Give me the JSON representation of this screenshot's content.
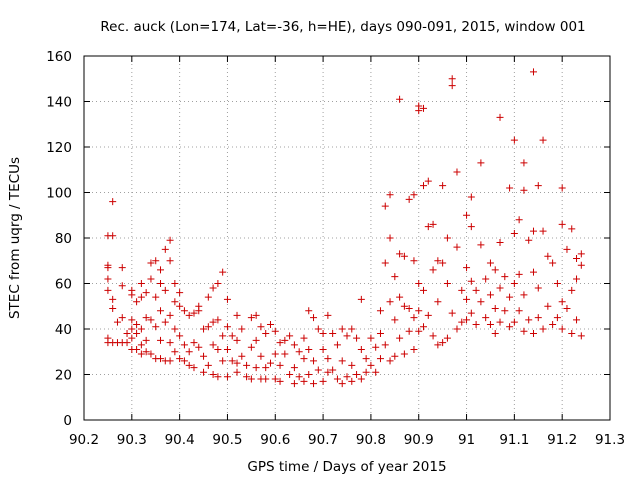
{
  "chart_data": {
    "type": "scatter",
    "title": "Rec. auck (Lon=174, Lat=-36, h=HE), days 090-091, 2015, window 001",
    "xlabel": "GPS time / Days of year 2015",
    "ylabel": "STEC from uqrg / TECUs",
    "xlim": [
      90.2,
      91.3
    ],
    "ylim": [
      0,
      160
    ],
    "xticks": [
      "90.2",
      "90.3",
      "90.4",
      "90.5",
      "90.6",
      "90.7",
      "90.8",
      "90.9",
      "91",
      "91.1",
      "91.2",
      "91.3"
    ],
    "xtick_values": [
      90.2,
      90.3,
      90.4,
      90.5,
      90.6,
      90.7,
      90.8,
      90.9,
      91.0,
      91.1,
      91.2,
      91.3
    ],
    "yticks": [
      "0",
      "20",
      "40",
      "60",
      "80",
      "100",
      "120",
      "140",
      "160"
    ],
    "ytick_values": [
      0,
      20,
      40,
      60,
      80,
      100,
      120,
      140,
      160
    ],
    "grid": true,
    "marker": "+",
    "color": "#cc0000",
    "points": [
      [
        90.25,
        68
      ],
      [
        90.25,
        67
      ],
      [
        90.25,
        62
      ],
      [
        90.25,
        57
      ],
      [
        90.25,
        34
      ],
      [
        90.25,
        36
      ],
      [
        90.25,
        81
      ],
      [
        90.26,
        81
      ],
      [
        90.26,
        96
      ],
      [
        90.26,
        53
      ],
      [
        90.26,
        49
      ],
      [
        90.26,
        34
      ],
      [
        90.27,
        34
      ],
      [
        90.27,
        43
      ],
      [
        90.28,
        67
      ],
      [
        90.28,
        59
      ],
      [
        90.28,
        45
      ],
      [
        90.28,
        34
      ],
      [
        90.29,
        38
      ],
      [
        90.29,
        34
      ],
      [
        90.3,
        57
      ],
      [
        90.3,
        55
      ],
      [
        90.3,
        44
      ],
      [
        90.3,
        40
      ],
      [
        90.3,
        36
      ],
      [
        90.3,
        31
      ],
      [
        90.31,
        52
      ],
      [
        90.31,
        42
      ],
      [
        90.31,
        38
      ],
      [
        90.31,
        31
      ],
      [
        90.32,
        60
      ],
      [
        90.32,
        54
      ],
      [
        90.32,
        40
      ],
      [
        90.32,
        33
      ],
      [
        90.32,
        29
      ],
      [
        90.33,
        56
      ],
      [
        90.33,
        45
      ],
      [
        90.33,
        35
      ],
      [
        90.33,
        30
      ],
      [
        90.34,
        69
      ],
      [
        90.34,
        62
      ],
      [
        90.34,
        44
      ],
      [
        90.34,
        29
      ],
      [
        90.35,
        70
      ],
      [
        90.35,
        54
      ],
      [
        90.35,
        41
      ],
      [
        90.35,
        27
      ],
      [
        90.36,
        66
      ],
      [
        90.36,
        60
      ],
      [
        90.36,
        48
      ],
      [
        90.36,
        35
      ],
      [
        90.36,
        27
      ],
      [
        90.37,
        75
      ],
      [
        90.37,
        57
      ],
      [
        90.37,
        43
      ],
      [
        90.37,
        26
      ],
      [
        90.38,
        79
      ],
      [
        90.38,
        70
      ],
      [
        90.38,
        46
      ],
      [
        90.38,
        34
      ],
      [
        90.38,
        26
      ],
      [
        90.39,
        60
      ],
      [
        90.39,
        52
      ],
      [
        90.39,
        40
      ],
      [
        90.39,
        30
      ],
      [
        90.4,
        56
      ],
      [
        90.4,
        50
      ],
      [
        90.4,
        37
      ],
      [
        90.4,
        27
      ],
      [
        90.41,
        48
      ],
      [
        90.41,
        33
      ],
      [
        90.41,
        26
      ],
      [
        90.42,
        46
      ],
      [
        90.42,
        30
      ],
      [
        90.42,
        24
      ],
      [
        90.43,
        47
      ],
      [
        90.43,
        34
      ],
      [
        90.43,
        23
      ],
      [
        90.44,
        50
      ],
      [
        90.44,
        48
      ],
      [
        90.44,
        32
      ],
      [
        90.45,
        40
      ],
      [
        90.45,
        28
      ],
      [
        90.45,
        21
      ],
      [
        90.46,
        54
      ],
      [
        90.46,
        41
      ],
      [
        90.46,
        24
      ],
      [
        90.47,
        58
      ],
      [
        90.47,
        43
      ],
      [
        90.47,
        33
      ],
      [
        90.47,
        20
      ],
      [
        90.48,
        60
      ],
      [
        90.48,
        44
      ],
      [
        90.48,
        31
      ],
      [
        90.48,
        19
      ],
      [
        90.49,
        65
      ],
      [
        90.49,
        37
      ],
      [
        90.49,
        26
      ],
      [
        90.5,
        53
      ],
      [
        90.5,
        41
      ],
      [
        90.5,
        31
      ],
      [
        90.5,
        19
      ],
      [
        90.51,
        37
      ],
      [
        90.51,
        26
      ],
      [
        90.52,
        46
      ],
      [
        90.52,
        35
      ],
      [
        90.52,
        25
      ],
      [
        90.52,
        21
      ],
      [
        90.53,
        40
      ],
      [
        90.53,
        28
      ],
      [
        90.54,
        24
      ],
      [
        90.54,
        19
      ],
      [
        90.55,
        45
      ],
      [
        90.55,
        32
      ],
      [
        90.55,
        18
      ],
      [
        90.56,
        46
      ],
      [
        90.56,
        35
      ],
      [
        90.56,
        23
      ],
      [
        90.57,
        41
      ],
      [
        90.57,
        28
      ],
      [
        90.57,
        18
      ],
      [
        90.58,
        38
      ],
      [
        90.58,
        23
      ],
      [
        90.58,
        18
      ],
      [
        90.59,
        42
      ],
      [
        90.59,
        25
      ],
      [
        90.6,
        39
      ],
      [
        90.6,
        29
      ],
      [
        90.6,
        18
      ],
      [
        90.61,
        34
      ],
      [
        90.61,
        24
      ],
      [
        90.61,
        17
      ],
      [
        90.62,
        35
      ],
      [
        90.62,
        29
      ],
      [
        90.63,
        37
      ],
      [
        90.63,
        20
      ],
      [
        90.64,
        33
      ],
      [
        90.64,
        23
      ],
      [
        90.64,
        16
      ],
      [
        90.65,
        30
      ],
      [
        90.65,
        19
      ],
      [
        90.66,
        36
      ],
      [
        90.66,
        27
      ],
      [
        90.66,
        17
      ],
      [
        90.67,
        48
      ],
      [
        90.67,
        31
      ],
      [
        90.67,
        20
      ],
      [
        90.68,
        45
      ],
      [
        90.68,
        26
      ],
      [
        90.68,
        16
      ],
      [
        90.69,
        40
      ],
      [
        90.69,
        22
      ],
      [
        90.7,
        38
      ],
      [
        90.7,
        31
      ],
      [
        90.7,
        17
      ],
      [
        90.71,
        46
      ],
      [
        90.71,
        27
      ],
      [
        90.71,
        21
      ],
      [
        90.72,
        38
      ],
      [
        90.72,
        22
      ],
      [
        90.73,
        33
      ],
      [
        90.73,
        18
      ],
      [
        90.74,
        40
      ],
      [
        90.74,
        26
      ],
      [
        90.74,
        16
      ],
      [
        90.75,
        37
      ],
      [
        90.75,
        19
      ],
      [
        90.76,
        40
      ],
      [
        90.76,
        24
      ],
      [
        90.76,
        17
      ],
      [
        90.77,
        36
      ],
      [
        90.77,
        20
      ],
      [
        90.78,
        53
      ],
      [
        90.78,
        31
      ],
      [
        90.78,
        18
      ],
      [
        90.79,
        27
      ],
      [
        90.79,
        21
      ],
      [
        90.8,
        36
      ],
      [
        90.8,
        24
      ],
      [
        90.81,
        32
      ],
      [
        90.81,
        21
      ],
      [
        90.82,
        48
      ],
      [
        90.82,
        38
      ],
      [
        90.82,
        27
      ],
      [
        90.83,
        94
      ],
      [
        90.83,
        69
      ],
      [
        90.83,
        33
      ],
      [
        90.84,
        99
      ],
      [
        90.84,
        80
      ],
      [
        90.84,
        52
      ],
      [
        90.84,
        26
      ],
      [
        90.85,
        63
      ],
      [
        90.85,
        44
      ],
      [
        90.85,
        28
      ],
      [
        90.86,
        141
      ],
      [
        90.86,
        73
      ],
      [
        90.86,
        54
      ],
      [
        90.86,
        36
      ],
      [
        90.87,
        72
      ],
      [
        90.87,
        50
      ],
      [
        90.87,
        29
      ],
      [
        90.88,
        97
      ],
      [
        90.88,
        49
      ],
      [
        90.88,
        39
      ],
      [
        90.89,
        99
      ],
      [
        90.89,
        70
      ],
      [
        90.89,
        45
      ],
      [
        90.89,
        31
      ],
      [
        90.9,
        136
      ],
      [
        90.9,
        138
      ],
      [
        90.9,
        60
      ],
      [
        90.9,
        48
      ],
      [
        90.9,
        39
      ],
      [
        90.91,
        137
      ],
      [
        90.91,
        103
      ],
      [
        90.91,
        57
      ],
      [
        90.91,
        41
      ],
      [
        90.92,
        105
      ],
      [
        90.92,
        85
      ],
      [
        90.92,
        46
      ],
      [
        90.93,
        86
      ],
      [
        90.93,
        66
      ],
      [
        90.93,
        37
      ],
      [
        90.94,
        70
      ],
      [
        90.94,
        52
      ],
      [
        90.94,
        33
      ],
      [
        90.95,
        103
      ],
      [
        90.95,
        69
      ],
      [
        90.95,
        34
      ],
      [
        90.96,
        80
      ],
      [
        90.96,
        60
      ],
      [
        90.96,
        36
      ],
      [
        90.97,
        150
      ],
      [
        90.97,
        147
      ],
      [
        90.97,
        47
      ],
      [
        90.98,
        109
      ],
      [
        90.98,
        76
      ],
      [
        90.98,
        40
      ],
      [
        90.99,
        57
      ],
      [
        90.99,
        43
      ],
      [
        91.0,
        90
      ],
      [
        91.0,
        67
      ],
      [
        91.0,
        53
      ],
      [
        91.0,
        44
      ],
      [
        91.01,
        98
      ],
      [
        91.01,
        85
      ],
      [
        91.01,
        61
      ],
      [
        91.01,
        47
      ],
      [
        91.02,
        57
      ],
      [
        91.02,
        42
      ],
      [
        91.03,
        113
      ],
      [
        91.03,
        77
      ],
      [
        91.03,
        52
      ],
      [
        91.04,
        62
      ],
      [
        91.04,
        45
      ],
      [
        91.05,
        69
      ],
      [
        91.05,
        55
      ],
      [
        91.05,
        42
      ],
      [
        91.06,
        66
      ],
      [
        91.06,
        49
      ],
      [
        91.06,
        38
      ],
      [
        91.07,
        133
      ],
      [
        91.07,
        78
      ],
      [
        91.07,
        58
      ],
      [
        91.07,
        43
      ],
      [
        91.08,
        63
      ],
      [
        91.08,
        48
      ],
      [
        91.09,
        102
      ],
      [
        91.09,
        54
      ],
      [
        91.09,
        41
      ],
      [
        91.1,
        123
      ],
      [
        91.1,
        82
      ],
      [
        91.1,
        60
      ],
      [
        91.1,
        43
      ],
      [
        91.11,
        88
      ],
      [
        91.11,
        64
      ],
      [
        91.11,
        48
      ],
      [
        91.12,
        113
      ],
      [
        91.12,
        101
      ],
      [
        91.12,
        55
      ],
      [
        91.12,
        39
      ],
      [
        91.13,
        79
      ],
      [
        91.13,
        44
      ],
      [
        91.14,
        153
      ],
      [
        91.14,
        83
      ],
      [
        91.14,
        65
      ],
      [
        91.14,
        38
      ],
      [
        91.15,
        103
      ],
      [
        91.15,
        58
      ],
      [
        91.15,
        45
      ],
      [
        91.16,
        123
      ],
      [
        91.16,
        83
      ],
      [
        91.16,
        40
      ],
      [
        91.17,
        72
      ],
      [
        91.17,
        50
      ],
      [
        91.18,
        69
      ],
      [
        91.18,
        42
      ],
      [
        91.19,
        60
      ],
      [
        91.19,
        45
      ],
      [
        91.2,
        102
      ],
      [
        91.2,
        86
      ],
      [
        91.2,
        52
      ],
      [
        91.2,
        40
      ],
      [
        91.21,
        75
      ],
      [
        91.21,
        49
      ],
      [
        91.22,
        84
      ],
      [
        91.22,
        57
      ],
      [
        91.22,
        38
      ],
      [
        91.23,
        71
      ],
      [
        91.23,
        62
      ],
      [
        91.23,
        44
      ],
      [
        91.24,
        73
      ],
      [
        91.24,
        68
      ],
      [
        91.24,
        37
      ]
    ]
  }
}
